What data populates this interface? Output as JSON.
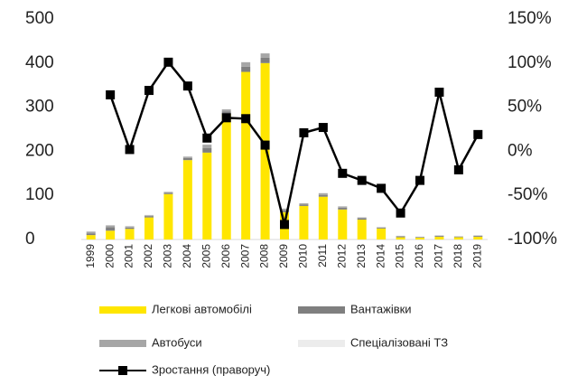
{
  "chart_data": {
    "type": "bar",
    "categories": [
      "1999",
      "2000",
      "2001",
      "2002",
      "2003",
      "2004",
      "2005",
      "2006",
      "2007",
      "2008",
      "2009",
      "2010",
      "2011",
      "2012",
      "2013",
      "2014",
      "2015",
      "2016",
      "2017",
      "2018",
      "2019"
    ],
    "series": [
      {
        "name": "Легкові автомобілі",
        "color": "#ffe600",
        "values": [
          10,
          20,
          24,
          50,
          103,
          180,
          197,
          285,
          380,
          400,
          62,
          76,
          97,
          68,
          45,
          25,
          5,
          4,
          6,
          5,
          6
        ]
      },
      {
        "name": "Вантажівки",
        "color": "#7f7f7f",
        "values": [
          4,
          8,
          3,
          3,
          3,
          5,
          10,
          5,
          12,
          12,
          4,
          3,
          4,
          4,
          3,
          2,
          2,
          1,
          2,
          1,
          2
        ]
      },
      {
        "name": "Автобуси",
        "color": "#a6a6a6",
        "values": [
          4,
          4,
          3,
          2,
          2,
          3,
          8,
          5,
          10,
          10,
          4,
          3,
          4,
          3,
          2,
          1,
          1,
          1,
          1,
          1,
          1
        ]
      },
      {
        "name": "Спеціалізовані ТЗ",
        "color": "#ececec",
        "values": [
          1,
          1,
          1,
          1,
          1,
          1,
          1,
          1,
          1,
          1,
          1,
          1,
          1,
          1,
          1,
          1,
          1,
          1,
          1,
          1,
          1
        ]
      },
      {
        "name": "Зростання (праворуч)",
        "color": "#000000",
        "type": "line",
        "axis": "y2",
        "values": [
          null,
          64,
          2,
          69,
          101,
          74,
          15,
          38,
          37,
          7,
          -83,
          21,
          27,
          -25,
          -33,
          -42,
          -70,
          -33,
          67,
          -21,
          19
        ]
      }
    ],
    "ylim": [
      0,
      500
    ],
    "yticks": [
      0,
      100,
      200,
      300,
      400,
      500
    ],
    "y2lim": [
      -100,
      150
    ],
    "y2ticks": [
      {
        "value": -100,
        "label": "-100%"
      },
      {
        "value": -50,
        "label": "-50%"
      },
      {
        "value": 0,
        "label": "0%"
      },
      {
        "value": 50,
        "label": "50%"
      },
      {
        "value": 100,
        "label": "100%"
      },
      {
        "value": 150,
        "label": "150%"
      }
    ],
    "stacked": true,
    "grid": false
  }
}
